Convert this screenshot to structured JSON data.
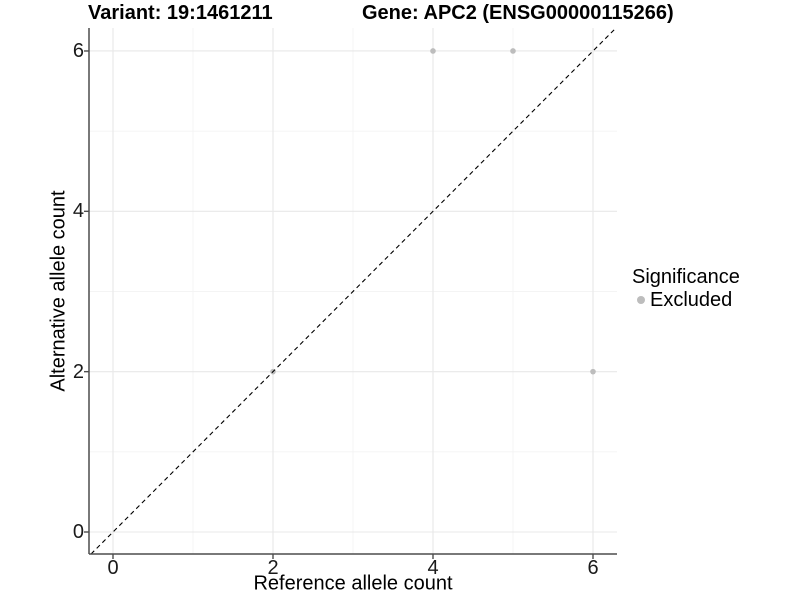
{
  "chart_data": {
    "type": "scatter",
    "title_left": "Variant: 19:1461211",
    "title_right": "Gene: APC2 (ENSG00000115266)",
    "xlabel": "Reference allele count",
    "ylabel": "Alternative allele count",
    "xlim": [
      -0.3,
      6.3
    ],
    "ylim": [
      -0.3,
      6.3
    ],
    "x_ticks": [
      0,
      2,
      4,
      6
    ],
    "y_ticks": [
      0,
      2,
      4,
      6
    ],
    "x_minor_ticks": [
      1,
      3,
      5
    ],
    "y_minor_ticks": [
      1,
      3,
      5
    ],
    "grid": true,
    "reference_line": {
      "type": "identity_y_equals_x",
      "style": "dashed",
      "color": "#000000"
    },
    "series": [
      {
        "name": "Excluded",
        "color": "#bdbdbd",
        "points": [
          [
            2,
            2
          ],
          [
            4,
            6
          ],
          [
            5,
            6
          ],
          [
            6,
            2
          ]
        ]
      }
    ],
    "legend": {
      "title": "Significance",
      "position": "right"
    }
  },
  "colors": {
    "background": "#ffffff",
    "grid_major": "#e8e8e8",
    "grid_minor": "#f4f4f4",
    "axis_line": "#4d4d4d",
    "tick_mark": "#4d4d4d",
    "tick_text": "#1a1a1a",
    "point": "#bdbdbd",
    "reference_line": "#000000"
  }
}
